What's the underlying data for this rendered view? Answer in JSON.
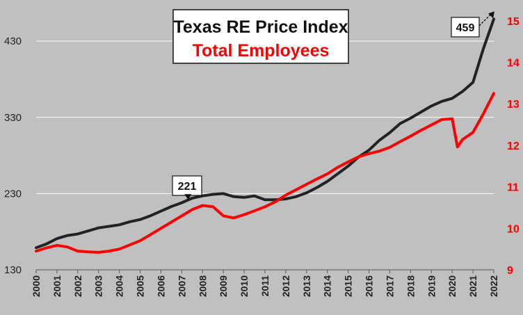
{
  "chart_data": {
    "type": "line",
    "title": "Texas RE Price Index",
    "subtitle": "Total Employees",
    "x_ticks": [
      "2000",
      "2001",
      "2002",
      "2003",
      "2004",
      "2005",
      "2006",
      "2007",
      "2008",
      "2009",
      "2010",
      "2011",
      "2012",
      "2013",
      "2014",
      "2015",
      "2016",
      "2017",
      "2018",
      "2019",
      "2020",
      "2021",
      "2022"
    ],
    "xlim": [
      2000,
      2022
    ],
    "y_left": {
      "ticks": [
        "130",
        "230",
        "330",
        "430"
      ],
      "range": [
        130,
        484
      ]
    },
    "y_right": {
      "ticks": [
        "9",
        "10",
        "11",
        "12",
        "13",
        "14",
        "15"
      ],
      "range": [
        9,
        15.5
      ]
    },
    "grid": "horizontal",
    "colors": {
      "price_index": "#222222",
      "employees": "#ff0000",
      "plot_bg": "#c0c0c0"
    },
    "series": [
      {
        "name": "Texas RE Price Index",
        "axis": "left",
        "x": [
          2000,
          2000.5,
          2001,
          2001.5,
          2002,
          2002.5,
          2003,
          2003.5,
          2004,
          2004.5,
          2005,
          2005.5,
          2006,
          2006.5,
          2007,
          2007.5,
          2008,
          2008.5,
          2009,
          2009.5,
          2010,
          2010.5,
          2011,
          2011.5,
          2012,
          2012.5,
          2013,
          2013.5,
          2014,
          2014.5,
          2015,
          2015.5,
          2016,
          2016.5,
          2017,
          2017.5,
          2018,
          2018.5,
          2019,
          2019.5,
          2020,
          2020.5,
          2021,
          2021.5,
          2022
        ],
        "values": [
          159,
          164,
          171,
          175,
          177,
          181,
          185,
          187,
          189,
          193,
          196,
          201,
          207,
          213,
          218,
          224,
          227,
          229,
          230,
          226,
          225,
          227,
          222,
          222,
          223,
          226,
          231,
          238,
          246,
          256,
          266,
          278,
          287,
          300,
          310,
          322,
          329,
          337,
          345,
          351,
          355,
          364,
          376,
          420,
          459
        ]
      },
      {
        "name": "Total Employees",
        "axis": "right",
        "x": [
          2000,
          2000.5,
          2001,
          2001.5,
          2002,
          2002.5,
          2003,
          2003.5,
          2004,
          2004.5,
          2005,
          2005.5,
          2006,
          2006.5,
          2007,
          2007.5,
          2008,
          2008.5,
          2009,
          2009.5,
          2010,
          2010.5,
          2011,
          2011.5,
          2012,
          2012.5,
          2013,
          2013.5,
          2014,
          2014.5,
          2015,
          2015.5,
          2016,
          2016.5,
          2017,
          2017.5,
          2018,
          2018.5,
          2019,
          2019.5,
          2020,
          2020.25,
          2020.5,
          2021,
          2021.5,
          2022
        ],
        "values": [
          9.45,
          9.53,
          9.59,
          9.55,
          9.45,
          9.43,
          9.42,
          9.45,
          9.5,
          9.6,
          9.7,
          9.85,
          10.0,
          10.15,
          10.3,
          10.45,
          10.55,
          10.52,
          10.3,
          10.25,
          10.33,
          10.42,
          10.52,
          10.64,
          10.8,
          10.93,
          11.06,
          11.19,
          11.31,
          11.47,
          11.6,
          11.72,
          11.8,
          11.86,
          11.95,
          12.09,
          12.22,
          12.36,
          12.49,
          12.62,
          12.64,
          11.96,
          12.14,
          12.31,
          12.76,
          13.25
        ]
      }
    ],
    "annotations": [
      {
        "label": "221",
        "x": 2007.3,
        "y": 221
      },
      {
        "label": "459",
        "x": 2022,
        "y": 459
      }
    ]
  }
}
